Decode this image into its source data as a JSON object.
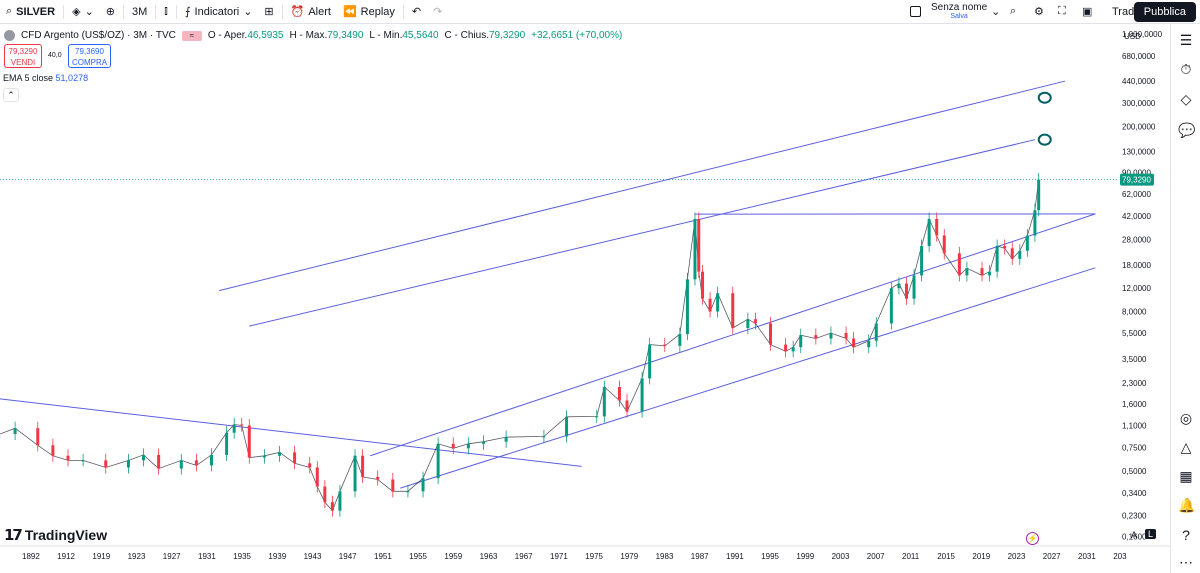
{
  "toolbar": {
    "symbol": "SILVER",
    "interval": "3M",
    "indicators_label": "Indicatori",
    "alert_label": "Alert",
    "replay_label": "Replay",
    "layout_name": "Senza nome",
    "layout_status": "Salva",
    "trade_label": "Trade",
    "publish_label": "Pubblica"
  },
  "legend": {
    "title": "CFD Argento (US$/OZ) · 3M · TVC",
    "o_label": "O - Aper.",
    "o_val": "46,5935",
    "h_label": "H - Max.",
    "h_val": "79,3490",
    "l_label": "L - Min.",
    "l_val": "45,5640",
    "c_label": "C - Chius.",
    "c_val": "79,3290",
    "change": "+32,6651 (+70,00%)",
    "sell_price": "79,3290",
    "sell_label": "VENDI",
    "spread": "40,0",
    "buy_price": "79,3690",
    "buy_label": "COMPRA",
    "ema_label": "EMA 5 close",
    "ema_val": "51,0278"
  },
  "currency": "USD",
  "branding": "TradingView",
  "scale_mode": {
    "auto": "A",
    "log": "L"
  },
  "colors": {
    "trend_line": "#5b5fe0",
    "up": "#089981",
    "down": "#f23645",
    "price_tag": "#089981",
    "annotation": "#006064"
  },
  "chart_data": {
    "type": "candlestick",
    "title": "CFD Argento (US$/OZ) · 3M · TVC",
    "ylabel": "USD",
    "yscale": "log",
    "xlim": [
      1888,
      2036
    ],
    "ylim": [
      0.14,
      1000
    ],
    "x_ticks": [
      "1892",
      "1912",
      "1919",
      "1923",
      "1927",
      "1931",
      "1935",
      "1939",
      "1943",
      "1947",
      "1951",
      "1955",
      "1959",
      "1963",
      "1967",
      "1971",
      "1975",
      "1979",
      "1983",
      "1987",
      "1991",
      "1995",
      "1999",
      "2003",
      "2007",
      "2011",
      "2015",
      "2019",
      "2023",
      "2027",
      "2031",
      "203"
    ],
    "y_ticks": [
      {
        "label": "1.000,0000",
        "v": 1000
      },
      {
        "label": "680,0000",
        "v": 680
      },
      {
        "label": "440,0000",
        "v": 440
      },
      {
        "label": "300,0000",
        "v": 300
      },
      {
        "label": "200,0000",
        "v": 200
      },
      {
        "label": "130,0000",
        "v": 130
      },
      {
        "label": "90,0000",
        "v": 90
      },
      {
        "label": "62,0000",
        "v": 62
      },
      {
        "label": "42,0000",
        "v": 42
      },
      {
        "label": "28,0000",
        "v": 28
      },
      {
        "label": "18,0000",
        "v": 18
      },
      {
        "label": "12,0000",
        "v": 12
      },
      {
        "label": "8,0000",
        "v": 8
      },
      {
        "label": "5,5000",
        "v": 5.5
      },
      {
        "label": "3,5000",
        "v": 3.5
      },
      {
        "label": "2,3000",
        "v": 2.3
      },
      {
        "label": "1,6000",
        "v": 1.6
      },
      {
        "label": "1,1000",
        "v": 1.1
      },
      {
        "label": "0,7500",
        "v": 0.75
      },
      {
        "label": "0,5000",
        "v": 0.5
      },
      {
        "label": "0,3400",
        "v": 0.34
      },
      {
        "label": "0,2300",
        "v": 0.23
      },
      {
        "label": "0,1600",
        "v": 0.16
      }
    ],
    "last_price": {
      "label": "79,3290",
      "v": 79.329
    },
    "price_series": [
      [
        1888,
        0.95
      ],
      [
        1890,
        1.05
      ],
      [
        1893,
        0.78
      ],
      [
        1895,
        0.65
      ],
      [
        1897,
        0.6
      ],
      [
        1899,
        0.6
      ],
      [
        1902,
        0.53
      ],
      [
        1905,
        0.6
      ],
      [
        1907,
        0.66
      ],
      [
        1909,
        0.52
      ],
      [
        1912,
        0.6
      ],
      [
        1914,
        0.55
      ],
      [
        1916,
        0.66
      ],
      [
        1918,
        0.97
      ],
      [
        1919,
        1.12
      ],
      [
        1920,
        1.1
      ],
      [
        1921,
        0.63
      ],
      [
        1923,
        0.65
      ],
      [
        1925,
        0.69
      ],
      [
        1927,
        0.57
      ],
      [
        1929,
        0.53
      ],
      [
        1930,
        0.38
      ],
      [
        1931,
        0.29
      ],
      [
        1932,
        0.25
      ],
      [
        1933,
        0.35
      ],
      [
        1935,
        0.65
      ],
      [
        1936,
        0.45
      ],
      [
        1938,
        0.43
      ],
      [
        1940,
        0.35
      ],
      [
        1942,
        0.35
      ],
      [
        1944,
        0.44
      ],
      [
        1946,
        0.8
      ],
      [
        1948,
        0.74
      ],
      [
        1950,
        0.8
      ],
      [
        1952,
        0.83
      ],
      [
        1955,
        0.9
      ],
      [
        1960,
        0.91
      ],
      [
        1963,
        1.28
      ],
      [
        1967,
        1.29
      ],
      [
        1968,
        2.15
      ],
      [
        1970,
        1.7
      ],
      [
        1971,
        1.4
      ],
      [
        1973,
        2.5
      ],
      [
        1974,
        4.5
      ],
      [
        1976,
        4.4
      ],
      [
        1978,
        5.4
      ],
      [
        1979,
        14
      ],
      [
        1980,
        40
      ],
      [
        1980.5,
        16
      ],
      [
        1981,
        10
      ],
      [
        1982,
        8
      ],
      [
        1983,
        11
      ],
      [
        1985,
        6
      ],
      [
        1987,
        7
      ],
      [
        1988,
        6.5
      ],
      [
        1990,
        4.5
      ],
      [
        1992,
        4
      ],
      [
        1993,
        4.3
      ],
      [
        1994,
        5.3
      ],
      [
        1996,
        5
      ],
      [
        1998,
        5.5
      ],
      [
        2000,
        5
      ],
      [
        2001,
        4.3
      ],
      [
        2003,
        4.8
      ],
      [
        2004,
        6.5
      ],
      [
        2006,
        12
      ],
      [
        2007,
        13
      ],
      [
        2008,
        10
      ],
      [
        2009,
        15
      ],
      [
        2010,
        25
      ],
      [
        2011,
        40
      ],
      [
        2012,
        30
      ],
      [
        2013,
        22
      ],
      [
        2015,
        15
      ],
      [
        2016,
        17
      ],
      [
        2018,
        15
      ],
      [
        2019,
        16
      ],
      [
        2020,
        25
      ],
      [
        2021,
        24
      ],
      [
        2022,
        20
      ],
      [
        2023,
        23
      ],
      [
        2024,
        30
      ],
      [
        2025,
        46.6
      ],
      [
        2025.5,
        79.33
      ]
    ],
    "ema": {
      "label": "EMA 5 close",
      "value": 51.0278
    },
    "trend_lines": [
      {
        "from": [
          1888,
          1.75
        ],
        "to": [
          1965,
          0.54
        ]
      },
      {
        "from": [
          1917,
          11.5
        ],
        "to": [
          2029,
          441
        ]
      },
      {
        "from": [
          1921,
          6.2
        ],
        "to": [
          2025,
          159
        ]
      },
      {
        "from": [
          1937,
          0.65
        ],
        "to": [
          2033,
          43.7
        ]
      },
      {
        "from": [
          1941,
          0.37
        ],
        "to": [
          2033,
          17.1
        ]
      },
      {
        "from": [
          1980,
          43.5
        ],
        "to": [
          2033,
          43.7
        ]
      }
    ],
    "annotations": [
      {
        "at": [
          2026.3,
          330
        ]
      },
      {
        "at": [
          2026.3,
          159
        ]
      }
    ]
  }
}
